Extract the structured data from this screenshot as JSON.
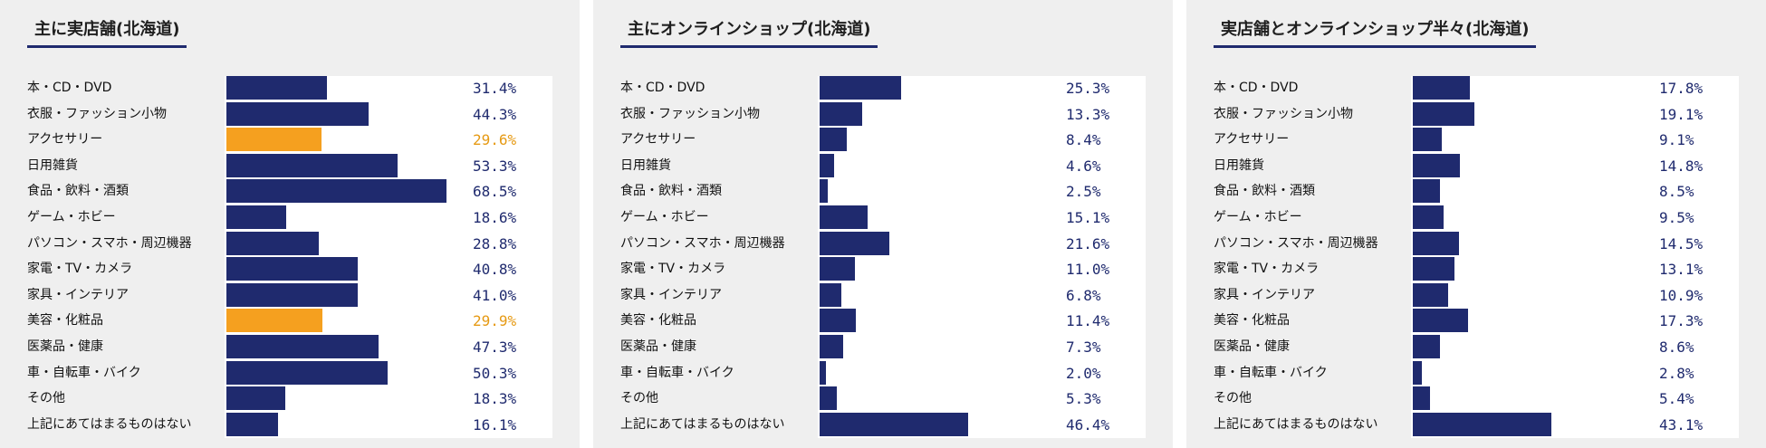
{
  "colors": {
    "bar": "#1f2a6e",
    "highlight": "#f5a01f",
    "value_text": "#1f2a6e",
    "highlight_text": "#e69a14"
  },
  "chart_data": [
    {
      "type": "bar",
      "orientation": "horizontal",
      "title": "主に実店舗(北海道)",
      "categories": [
        "本・CD・DVD",
        "衣服・ファッション小物",
        "アクセサリー",
        "日用雑貨",
        "食品・飲料・酒類",
        "ゲーム・ホビー",
        "パソコン・スマホ・周辺機器",
        "家電・TV・カメラ",
        "家具・インテリア",
        "美容・化粧品",
        "医薬品・健康",
        "車・自転車・バイク",
        "その他",
        "上記にあてはまるものはない"
      ],
      "values": [
        31.4,
        44.3,
        29.6,
        53.3,
        68.5,
        18.6,
        28.8,
        40.8,
        41.0,
        29.9,
        47.3,
        50.3,
        18.3,
        16.1
      ],
      "value_labels": [
        "31.4%",
        "44.3%",
        "29.6%",
        "53.3%",
        "68.5%",
        "18.6%",
        "28.8%",
        "40.8%",
        "41.0%",
        "29.9%",
        "47.3%",
        "50.3%",
        "18.3%",
        "16.1%"
      ],
      "highlighted": [
        2,
        9
      ],
      "xlim": [
        0,
        70
      ]
    },
    {
      "type": "bar",
      "orientation": "horizontal",
      "title": "主にオンラインショップ(北海道)",
      "categories": [
        "本・CD・DVD",
        "衣服・ファッション小物",
        "アクセサリー",
        "日用雑貨",
        "食品・飲料・酒類",
        "ゲーム・ホビー",
        "パソコン・スマホ・周辺機器",
        "家電・TV・カメラ",
        "家具・インテリア",
        "美容・化粧品",
        "医薬品・健康",
        "車・自転車・バイク",
        "その他",
        "上記にあてはまるものはない"
      ],
      "values": [
        25.3,
        13.3,
        8.4,
        4.6,
        2.5,
        15.1,
        21.6,
        11.0,
        6.8,
        11.4,
        7.3,
        2.0,
        5.3,
        46.4
      ],
      "value_labels": [
        "25.3%",
        "13.3%",
        "8.4%",
        "4.6%",
        "2.5%",
        "15.1%",
        "21.6%",
        "11.0%",
        "6.8%",
        "11.4%",
        "7.3%",
        "2.0%",
        "5.3%",
        "46.4%"
      ],
      "highlighted": [],
      "xlim": [
        0,
        70
      ]
    },
    {
      "type": "bar",
      "orientation": "horizontal",
      "title": "実店舗とオンラインショップ半々(北海道)",
      "categories": [
        "本・CD・DVD",
        "衣服・ファッション小物",
        "アクセサリー",
        "日用雑貨",
        "食品・飲料・酒類",
        "ゲーム・ホビー",
        "パソコン・スマホ・周辺機器",
        "家電・TV・カメラ",
        "家具・インテリア",
        "美容・化粧品",
        "医薬品・健康",
        "車・自転車・バイク",
        "その他",
        "上記にあてはまるものはない"
      ],
      "values": [
        17.8,
        19.1,
        9.1,
        14.8,
        8.5,
        9.5,
        14.5,
        13.1,
        10.9,
        17.3,
        8.6,
        2.8,
        5.4,
        43.1
      ],
      "value_labels": [
        "17.8%",
        "19.1%",
        "9.1%",
        "14.8%",
        "8.5%",
        "9.5%",
        "14.5%",
        "13.1%",
        "10.9%",
        "17.3%",
        "8.6%",
        "2.8%",
        "5.4%",
        "43.1%"
      ],
      "highlighted": [],
      "xlim": [
        0,
        70
      ]
    }
  ]
}
